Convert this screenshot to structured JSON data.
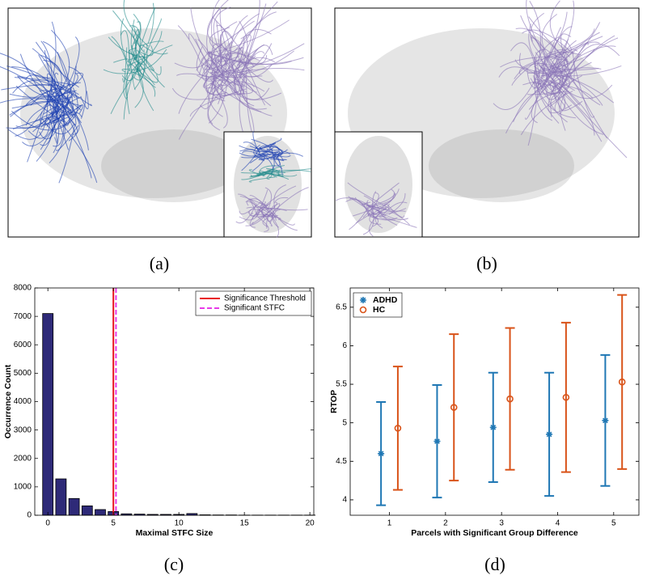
{
  "images": [
    {
      "label": "(a)"
    },
    {
      "label": "(b)"
    }
  ],
  "chart_data": [
    {
      "type": "bar",
      "caption": "(c)",
      "xlabel": "Maximal STFC Size",
      "ylabel": "Occurrence Count",
      "x": [
        0,
        1,
        2,
        3,
        4,
        5,
        6,
        7,
        8,
        9,
        10,
        11,
        12,
        13,
        14,
        15,
        16,
        17,
        18,
        19,
        20
      ],
      "values": [
        7100,
        1280,
        590,
        330,
        200,
        130,
        50,
        40,
        30,
        30,
        30,
        60,
        15,
        10,
        10,
        5,
        5,
        5,
        5,
        5,
        5
      ],
      "color": "#2e2a78",
      "xlim": [
        -1,
        20.3
      ],
      "xticks": [
        0,
        5,
        10,
        15,
        20
      ],
      "ylim": [
        0,
        8000
      ],
      "yticks": [
        0,
        1000,
        2000,
        3000,
        4000,
        5000,
        6000,
        7000,
        8000
      ],
      "lines": [
        {
          "name": "Significance Threshold",
          "value": 5,
          "color": "#e8141e",
          "dashed": false
        },
        {
          "name": "Significant STFC",
          "value": 5.2,
          "color": "#e83ae8",
          "dashed": true
        }
      ],
      "legend": "upper right"
    },
    {
      "type": "errorbar",
      "caption": "(d)",
      "xlabel": "Parcels with Significant Group Difference",
      "ylabel": "RTOP",
      "x": [
        1,
        2,
        3,
        4,
        5
      ],
      "series": [
        {
          "name": "ADHD",
          "color": "#1f77b4",
          "marker": "asterisk",
          "values": [
            4.6,
            4.76,
            4.94,
            4.85,
            5.03
          ],
          "errors": [
            0.67,
            0.73,
            0.71,
            0.8,
            0.85
          ]
        },
        {
          "name": "HC",
          "color": "#d95319",
          "marker": "circle",
          "values": [
            4.93,
            5.2,
            5.31,
            5.33,
            5.53
          ],
          "errors": [
            0.8,
            0.95,
            0.92,
            0.97,
            1.13
          ]
        }
      ],
      "xlim": [
        0.3,
        5.45
      ],
      "xticks": [
        1,
        2,
        3,
        4,
        5
      ],
      "ylim": [
        3.8,
        6.75
      ],
      "yticks": [
        4,
        4.5,
        5,
        5.5,
        6,
        6.5
      ],
      "legend": "upper left"
    }
  ]
}
